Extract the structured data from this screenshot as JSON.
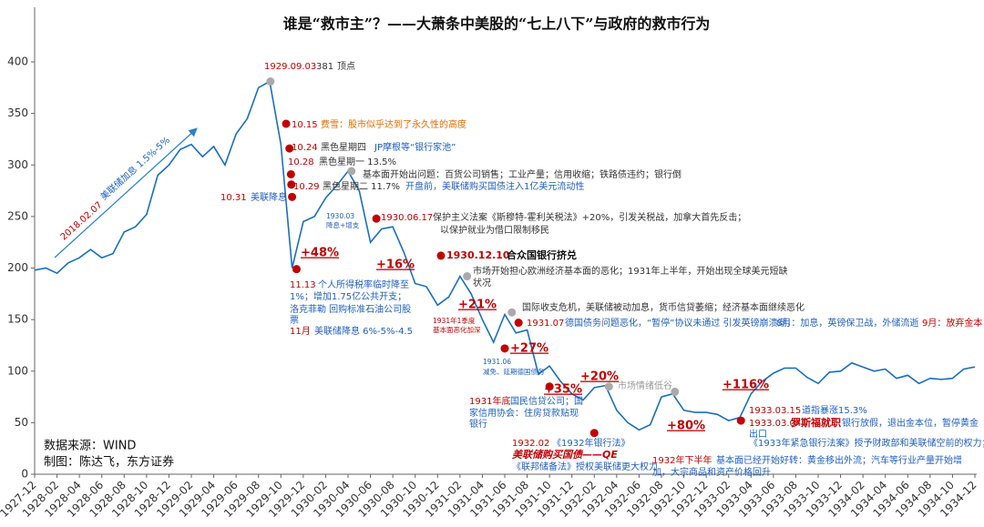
{
  "chart_data": {
    "type": "line",
    "title": "谁是“救市主”？——大萧条中美股的“七上八下”与政府的救市行为",
    "color": "#1a6fc0",
    "x": [
      "1927-12",
      "1928-01",
      "1928-02",
      "1928-03",
      "1928-04",
      "1928-05",
      "1928-06",
      "1928-07",
      "1928-08",
      "1928-09",
      "1928-10",
      "1928-11",
      "1928-12",
      "1929-01",
      "1929-02",
      "1929-03",
      "1929-04",
      "1929-05",
      "1929-06",
      "1929-07",
      "1929-08",
      "1929-09",
      "1929-10",
      "1929-11",
      "1929-12",
      "1930-01",
      "1930-02",
      "1930-03",
      "1930-04",
      "1930-05",
      "1930-06",
      "1930-07",
      "1930-08",
      "1930-09",
      "1930-10",
      "1930-11",
      "1930-12",
      "1931-01",
      "1931-02",
      "1931-03",
      "1931-04",
      "1931-05",
      "1931-06",
      "1931-07",
      "1931-08",
      "1931-09",
      "1931-10",
      "1931-11",
      "1931-12",
      "1932-01",
      "1932-02",
      "1932-03",
      "1932-04",
      "1932-05",
      "1932-06",
      "1932-07",
      "1932-08",
      "1932-09",
      "1932-10",
      "1932-11",
      "1932-12",
      "1933-01",
      "1933-02",
      "1933-03",
      "1933-04",
      "1933-05",
      "1933-06",
      "1933-07",
      "1933-08",
      "1933-09",
      "1933-10",
      "1933-11",
      "1933-12",
      "1934-01",
      "1934-02",
      "1934-03",
      "1934-04",
      "1934-05",
      "1934-06",
      "1934-07",
      "1934-08",
      "1934-09",
      "1934-10",
      "1934-11",
      "1934-12"
    ],
    "values": [
      198,
      200,
      195,
      205,
      210,
      218,
      210,
      214,
      235,
      240,
      252,
      290,
      300,
      315,
      320,
      308,
      318,
      300,
      330,
      345,
      375,
      381,
      320,
      200,
      245,
      250,
      268,
      280,
      294,
      275,
      225,
      238,
      240,
      215,
      185,
      182,
      164,
      172,
      192,
      175,
      150,
      128,
      155,
      137,
      140,
      97,
      105,
      90,
      78,
      72,
      84,
      86,
      62,
      50,
      43,
      48,
      75,
      78,
      62,
      60,
      60,
      58,
      52,
      55,
      78,
      90,
      98,
      103,
      103,
      94,
      88,
      99,
      100,
      108,
      104,
      100,
      102,
      93,
      96,
      88,
      93,
      92,
      93,
      102,
      104
    ],
    "xticks": [
      "1927-12",
      "1928-02",
      "1928-04",
      "1928-06",
      "1928-08",
      "1928-10",
      "1928-12",
      "1929-02",
      "1929-04",
      "1929-06",
      "1929-08",
      "1929-10",
      "1929-12",
      "1930-02",
      "1930-04",
      "1930-06",
      "1930-08",
      "1930-10",
      "1930-12",
      "1931-02",
      "1931-04",
      "1931-06",
      "1931-08",
      "1931-10",
      "1931-12",
      "1932-02",
      "1932-04",
      "1932-06",
      "1932-08",
      "1932-10",
      "1932-12",
      "1933-02",
      "1933-04",
      "1933-06",
      "1933-08",
      "1933-10",
      "1933-12",
      "1934-02",
      "1934-04",
      "1934-06",
      "1934-08",
      "1934-10",
      "1934-12"
    ],
    "ylim": [
      0,
      420
    ],
    "yticks": [
      0,
      50,
      100,
      150,
      200,
      250,
      300,
      350,
      400
    ],
    "points": [
      {
        "x": "1929-09-03",
        "value": 381,
        "color": "#aaaaaa"
      },
      {
        "x": "1929-10-15",
        "value": 340,
        "color": "#c00000"
      },
      {
        "x": "1929-10-24",
        "value": 316,
        "color": "#c00000"
      },
      {
        "x": "1929-10-28",
        "value": 291,
        "color": "#c00000"
      },
      {
        "x": "1929-10-29",
        "value": 281,
        "color": "#c00000"
      },
      {
        "x": "1929-10-31",
        "value": 269,
        "color": "#c00000"
      },
      {
        "x": "1929-11-13",
        "value": 199,
        "color": "#c00000"
      },
      {
        "x": "1930-04-10",
        "value": 294,
        "color": "#aaaaaa"
      },
      {
        "x": "1930-06-17",
        "value": 248,
        "color": "#c00000"
      },
      {
        "x": "1930-12-10",
        "value": 212,
        "color": "#c00000"
      },
      {
        "x": "1931-02-20",
        "value": 192,
        "color": "#aaaaaa"
      },
      {
        "x": "1931-06-01",
        "value": 122,
        "color": "#c00000"
      },
      {
        "x": "1931-06-20",
        "value": 157,
        "color": "#aaaaaa"
      },
      {
        "x": "1931-07-08",
        "value": 147,
        "color": "#c00000"
      },
      {
        "x": "1931-10-01",
        "value": 85,
        "color": "#c00000"
      },
      {
        "x": "1932-02-01",
        "value": 40,
        "color": "#c00000"
      },
      {
        "x": "1932-03-10",
        "value": 85,
        "color": "#aaaaaa"
      },
      {
        "x": "1932-09-07",
        "value": 80,
        "color": "#aaaaaa"
      },
      {
        "x": "1933-03-04",
        "value": 52,
        "color": "#c00000"
      }
    ],
    "annotations": [
      {
        "text": "1929.09.03",
        "color": "#c00000"
      },
      {
        "text": "顶点",
        "color": "#333333"
      },
      {
        "text": "10.15",
        "color": "#c00000"
      },
      {
        "text": "费雪：股市似乎达到了永久性的高度",
        "color": "#e06c00"
      },
      {
        "text": "10.24",
        "color": "#c00000"
      },
      {
        "text": "黑色星期四",
        "color": "#333333"
      },
      {
        "text": "JP摩根等“银行家池”",
        "color": "#1f5fbf"
      },
      {
        "text": "10.28",
        "color": "#c00000"
      },
      {
        "text": "黑色星期一 13.5%",
        "color": "#333333"
      },
      {
        "text": "基本面开始出问题：百货公司销售；工业产量；信用收缩；铁路债违约；银行倒",
        "color": "#333333"
      },
      {
        "text": "10.29",
        "color": "#c00000"
      },
      {
        "text": "黑色星期二 11.7%",
        "color": "#333333"
      },
      {
        "text": "开盘前，美联储购买国债注入1亿美元流动性",
        "color": "#1f5fbf"
      },
      {
        "text": "10.31",
        "color": "#c00000"
      },
      {
        "text": "美联降息",
        "color": "#1f5fbf"
      },
      {
        "text": "1930.03",
        "color": "#1f5fbf"
      },
      {
        "text": "降息+增支",
        "color": "#1f5fbf"
      },
      {
        "text": "1930.06.17",
        "color": "#c00000"
      },
      {
        "text": "保护主义法案《斯穆特-霍利关税法》+20%，引发关税战，加拿大首先反击；",
        "color": "#333333"
      },
      {
        "text": "以保护就业为借口限制移民",
        "color": "#333333"
      },
      {
        "text": "+48%",
        "color": "#c00000"
      },
      {
        "text": "+16%",
        "color": "#c00000"
      },
      {
        "text": "1930.12.10",
        "color": "#c00000"
      },
      {
        "text": "合众国银行挤兑",
        "color": "#111111"
      },
      {
        "text": "市场开始担心欧洲经济基本面的恶化；1931年上半年，开始出现全球美元短缺",
        "color": "#333333"
      },
      {
        "text": "状况",
        "color": "#333333"
      },
      {
        "text": "11.13",
        "color": "#c00000"
      },
      {
        "text": "个人所得税率临时降至",
        "color": "#1f5fbf"
      },
      {
        "text": "1%；增加1.75亿公共开支；",
        "color": "#1f5fbf"
      },
      {
        "text": "洛克菲勒 回购标准石油公司股",
        "color": "#1f5fbf"
      },
      {
        "text": "票",
        "color": "#1f5fbf"
      },
      {
        "text": "11月",
        "color": "#c00000"
      },
      {
        "text": "美联储降息 6%-5%-4.5",
        "color": "#1f5fbf"
      },
      {
        "text": "+21%",
        "color": "#c00000"
      },
      {
        "text": "国际收支危机，美联储被动加息，货币信贷萎缩；经济基本面继续恶化",
        "color": "#333333"
      },
      {
        "text": "1931年1季度",
        "color": "#c00000"
      },
      {
        "text": "基本面恶化加深",
        "color": "#c00000"
      },
      {
        "text": "1931.07",
        "color": "#c00000"
      },
      {
        "text": "德国债务问题恶化，“暂停”协议未通过 引发英镑崩溃潮，",
        "color": "#1f5fbf"
      },
      {
        "text": "8月：加息，英镑保卫战，外储流逝",
        "color": "#1f5fbf"
      },
      {
        "text": "9月：放弃金本",
        "color": "#c00000"
      },
      {
        "text": "+27%",
        "color": "#c00000"
      },
      {
        "text": "1931.06",
        "color": "#1f5fbf"
      },
      {
        "text": "减免、延期德国债务",
        "color": "#1f5fbf"
      },
      {
        "text": "+20%",
        "color": "#c00000"
      },
      {
        "text": "+35%",
        "color": "#c00000"
      },
      {
        "text": "市场情绪低谷",
        "color": "#999999"
      },
      {
        "text": "1931年底",
        "color": "#c00000"
      },
      {
        "text": "国民信贷公司；国",
        "color": "#1f5fbf"
      },
      {
        "text": "家信用协会：住房贷款贴现",
        "color": "#1f5fbf"
      },
      {
        "text": "银行",
        "color": "#1f5fbf"
      },
      {
        "text": "+80%",
        "color": "#c00000"
      },
      {
        "text": "+116%",
        "color": "#c00000"
      },
      {
        "text": "1933.03.15",
        "color": "#c00000"
      },
      {
        "text": "道指暴涨15.3%",
        "color": "#1f5fbf"
      },
      {
        "text": "1933.03.04",
        "color": "#c00000"
      },
      {
        "text": "罗斯福就职",
        "color": "#c00000"
      },
      {
        "text": "银行放假，退出金本位，暂停黄金",
        "color": "#1f5fbf"
      },
      {
        "text": "出口",
        "color": "#1f5fbf"
      },
      {
        "text": "《1933年紧急银行法案》授予财政部和美联储空前的权力；",
        "color": "#1f5fbf"
      },
      {
        "text": "1932.02",
        "color": "#c00000"
      },
      {
        "text": "《1932年银行法》",
        "color": "#1f5fbf"
      },
      {
        "text": "美联储购买国债——QE",
        "color": "#c00000"
      },
      {
        "text": "《联邦储备法》授权美联储更大权力",
        "color": "#1f5fbf"
      },
      {
        "text": "1932年下半年",
        "color": "#c00000"
      },
      {
        "text": "基本面已经开始好转：黄金移出外流；汽车等行业产量开始增",
        "color": "#1f5fbf"
      },
      {
        "text": "加，大宗商品和资产价格回升",
        "color": "#1f5fbf"
      },
      {
        "text": "2018.02.07",
        "color": "#c00000"
      },
      {
        "text": "美联储加息 1.5%-5%",
        "color": "#1f5fbf"
      },
      {
        "text": "数据来源：WIND",
        "color": "#111111"
      },
      {
        "text": "制图：陈达飞，东方证券",
        "color": "#111111"
      }
    ]
  }
}
